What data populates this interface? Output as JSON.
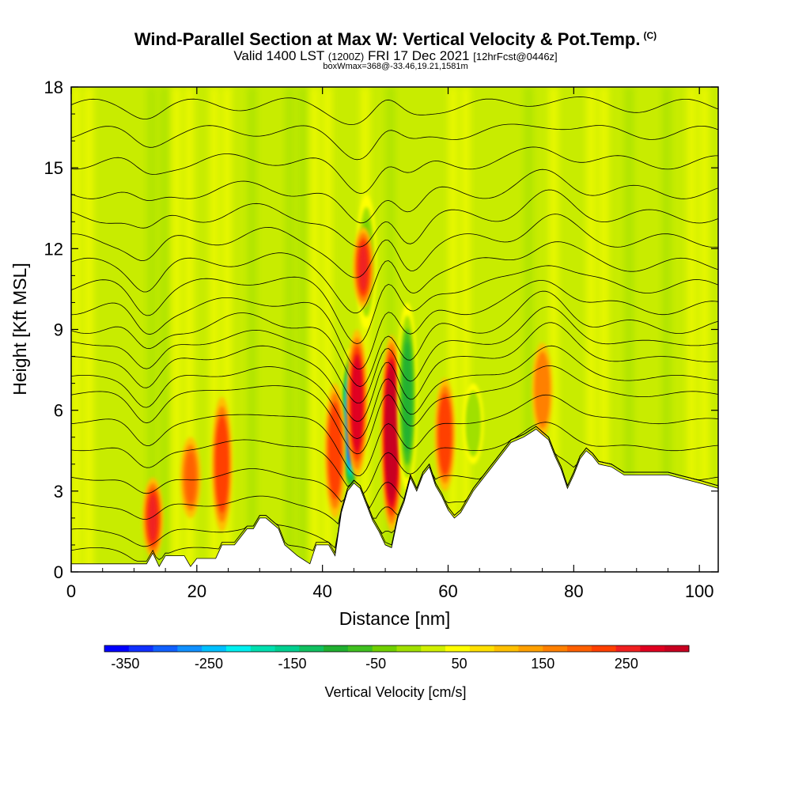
{
  "header": {
    "title": "Wind-Parallel Section at Max W: Vertical Velocity & Pot.Temp.",
    "copyright": "(C)",
    "valid_prefix": "Valid 1400 LST",
    "valid_z": "(1200Z)",
    "valid_date": "FRI 17 Dec 2021",
    "forecast": "[12hrFcst@0446z]",
    "boxinfo": "boxWmax=368@-33.46,19.21,1581m"
  },
  "chart_data": {
    "type": "heatmap",
    "xlabel": "Distance [nm]",
    "ylabel": "Height [Kft MSL]",
    "xlim": [
      0,
      103
    ],
    "ylim": [
      0,
      18
    ],
    "x_ticks": [
      0,
      20,
      40,
      60,
      80,
      100
    ],
    "y_ticks": [
      0,
      3,
      6,
      9,
      12,
      15,
      18
    ],
    "colorbar": {
      "label": "Vertical Velocity [cm/s]",
      "min": -375,
      "max": 325,
      "step": 25,
      "tick_values": [
        -350,
        -250,
        -150,
        -50,
        50,
        150,
        250
      ],
      "tick_labels": [
        "-350",
        "-250",
        "-150",
        "-50",
        "50",
        "150",
        "250"
      ],
      "colors": [
        "#0000ff",
        "#1030ff",
        "#1060ff",
        "#1090ff",
        "#00c0ff",
        "#00f0f0",
        "#00e0b0",
        "#00d090",
        "#10c060",
        "#20b030",
        "#40c020",
        "#70d000",
        "#a0e000",
        "#d0f000",
        "#ffff00",
        "#ffe000",
        "#ffc000",
        "#ffa000",
        "#ff8000",
        "#ff6000",
        "#ff4000",
        "#f02020",
        "#e00020",
        "#c80020"
      ]
    },
    "terrain_kft": [
      [
        0,
        0.3
      ],
      [
        6,
        0.3
      ],
      [
        10,
        0.3
      ],
      [
        12,
        0.3
      ],
      [
        13,
        0.7
      ],
      [
        14,
        0.2
      ],
      [
        15,
        0.6
      ],
      [
        18,
        0.6
      ],
      [
        19,
        0.2
      ],
      [
        20,
        0.5
      ],
      [
        23,
        0.5
      ],
      [
        24,
        1
      ],
      [
        26,
        1
      ],
      [
        27,
        1.3
      ],
      [
        28,
        1.6
      ],
      [
        29,
        1.6
      ],
      [
        30,
        2
      ],
      [
        31,
        2
      ],
      [
        33,
        1.6
      ],
      [
        34,
        1
      ],
      [
        36,
        0.6
      ],
      [
        38,
        0.3
      ],
      [
        39,
        1
      ],
      [
        41,
        1
      ],
      [
        42,
        0.6
      ],
      [
        43,
        2.2
      ],
      [
        44,
        3
      ],
      [
        45,
        3.3
      ],
      [
        46,
        3.1
      ],
      [
        47,
        2.5
      ],
      [
        48,
        1.9
      ],
      [
        49,
        1.5
      ],
      [
        50,
        1
      ],
      [
        51,
        0.9
      ],
      [
        52,
        2
      ],
      [
        53,
        2.6
      ],
      [
        54,
        3.5
      ],
      [
        55,
        3
      ],
      [
        56,
        3.6
      ],
      [
        57,
        3.9
      ],
      [
        58,
        3.2
      ],
      [
        59,
        2.8
      ],
      [
        60,
        2.3
      ],
      [
        61,
        2
      ],
      [
        62,
        2.2
      ],
      [
        63,
        2.6
      ],
      [
        64,
        3
      ],
      [
        65,
        3.3
      ],
      [
        66,
        3.6
      ],
      [
        67,
        3.9
      ],
      [
        68,
        4.2
      ],
      [
        69,
        4.5
      ],
      [
        70,
        4.8
      ],
      [
        72,
        5
      ],
      [
        74,
        5.3
      ],
      [
        75,
        5.1
      ],
      [
        76,
        4.9
      ],
      [
        77,
        4.3
      ],
      [
        78,
        3.8
      ],
      [
        79,
        3.1
      ],
      [
        80,
        3.6
      ],
      [
        81,
        4.2
      ],
      [
        82,
        4.5
      ],
      [
        83,
        4.3
      ],
      [
        84,
        4
      ],
      [
        86,
        3.9
      ],
      [
        88,
        3.6
      ],
      [
        95,
        3.6
      ],
      [
        100,
        3.3
      ],
      [
        103,
        3.1
      ]
    ],
    "velocity_features_cm_s": [
      {
        "x": 44.5,
        "y_bottom": 2.8,
        "y_top": 8.3,
        "value": -350
      },
      {
        "x": 45.5,
        "y_bottom": 3.5,
        "y_top": 9,
        "value": 175
      },
      {
        "x": 51,
        "y_bottom": 1.5,
        "y_top": 8.8,
        "value": 275
      },
      {
        "x": 53.5,
        "y_bottom": 3,
        "y_top": 10,
        "value": -150
      },
      {
        "x": 47,
        "y_bottom": 9,
        "y_top": 14,
        "value": -100
      },
      {
        "x": 46.5,
        "y_bottom": 9.8,
        "y_top": 12.8,
        "value": 150
      },
      {
        "x": 42,
        "y_bottom": 2,
        "y_top": 7,
        "value": 125
      },
      {
        "x": 59.5,
        "y_bottom": 3,
        "y_top": 7.2,
        "value": 125
      },
      {
        "x": 13,
        "y_bottom": 0.5,
        "y_top": 3.5,
        "value": 150
      },
      {
        "x": 24,
        "y_bottom": 1.5,
        "y_top": 6.5,
        "value": 125
      },
      {
        "x": 19,
        "y_bottom": 2,
        "y_top": 5,
        "value": 100
      },
      {
        "x": 64,
        "y_bottom": 4,
        "y_top": 7,
        "value": -75
      },
      {
        "x": 75,
        "y_bottom": 5,
        "y_top": 8.5,
        "value": 75
      }
    ],
    "isentropes_base_kft": [
      0.8,
      1.5,
      2.5,
      3.5,
      4.6,
      5.6,
      6.6,
      7.2,
      7.9,
      8.5,
      9.1,
      9.8,
      10.6,
      11.4,
      12.3,
      13.2,
      14.1,
      15.2,
      16.3,
      17.3
    ]
  }
}
